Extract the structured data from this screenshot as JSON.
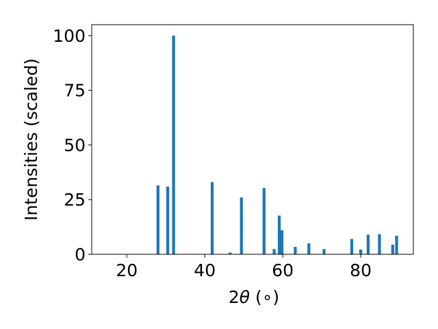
{
  "chart_data": {
    "type": "bar",
    "xlabel_prefix": "2",
    "xlabel_symbol": "θ",
    "xlabel_suffix": " (∘)",
    "ylabel": "Intensities (scaled)",
    "xlim": [
      11,
      93.5
    ],
    "ylim": [
      0,
      105
    ],
    "xticks": [
      20,
      40,
      60,
      80
    ],
    "yticks": [
      0,
      25,
      50,
      75,
      100
    ],
    "bar_width_data": 0.75,
    "bar_color": "#1f77b4",
    "grid": false,
    "x": [
      28.0,
      30.5,
      32.0,
      41.9,
      46.5,
      49.4,
      55.2,
      57.8,
      59.1,
      59.8,
      63.2,
      66.7,
      70.6,
      77.7,
      80.0,
      81.9,
      84.8,
      88.2,
      89.2
    ],
    "values": [
      31.5,
      31.0,
      100.0,
      33.0,
      0.8,
      26.0,
      30.3,
      2.4,
      17.7,
      11.0,
      3.4,
      5.0,
      2.4,
      7.0,
      2.2,
      9.0,
      9.2,
      4.4,
      8.5
    ]
  }
}
